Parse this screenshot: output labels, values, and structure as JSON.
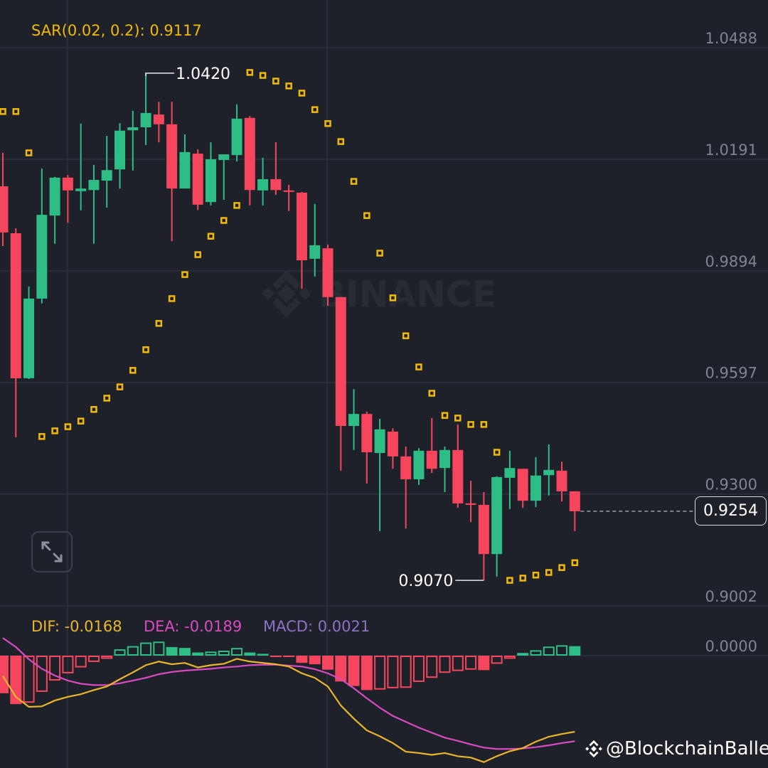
{
  "indicators": {
    "sar_label": "SAR(0.02, 0.2): 0.9117",
    "dif_label": "DIF: -0.0168",
    "dea_label": "DEA: -0.0189",
    "macd_label": "MACD: 0.0021"
  },
  "markers": {
    "high_label": "1.0420",
    "low_label": "0.9070",
    "current_price": "0.9254"
  },
  "watermarks": {
    "center": "BINANCE",
    "credit": "@BlockchainBaller"
  },
  "controls": {
    "expand_icon": "expand-arrows-icon"
  },
  "colors": {
    "background": "#1e2129",
    "up": "#2ebd85",
    "down": "#f6465d",
    "sar": "#f0b90b",
    "dif": "#e9b62c",
    "dea": "#d94bc0",
    "macd": "#8e72c6",
    "axis_text": "#7d8593",
    "grid": "#2b303a"
  },
  "chart_data": [
    {
      "type": "candlestick",
      "ohlc_order": [
        "open",
        "high",
        "low",
        "close"
      ],
      "y_ticks": [
        "1.0488",
        "1.0191",
        "0.9894",
        "0.9597",
        "0.9300",
        "0.9002"
      ],
      "ylim": [
        0.9002,
        1.0488
      ],
      "grid": true,
      "candles": [
        [
          1.0119,
          1.0208,
          0.996,
          0.9996
        ],
        [
          0.9994,
          1.0007,
          0.9451,
          0.9608
        ],
        [
          0.9608,
          0.9852,
          0.9606,
          0.982
        ],
        [
          0.982,
          1.0166,
          0.9807,
          1.0043
        ],
        [
          1.0041,
          1.0144,
          0.9966,
          1.0142
        ],
        [
          1.0142,
          1.0149,
          1.0022,
          1.0108
        ],
        [
          1.0106,
          1.0286,
          1.0055,
          1.0113
        ],
        [
          1.0109,
          1.0176,
          0.9966,
          1.0136
        ],
        [
          1.0134,
          1.0253,
          1.0062,
          1.0162
        ],
        [
          1.0164,
          1.0287,
          1.0113,
          1.0267
        ],
        [
          1.0268,
          1.032,
          1.0161,
          1.0276
        ],
        [
          1.0276,
          1.042,
          1.0229,
          1.0314
        ],
        [
          1.031,
          1.0344,
          1.0236,
          1.0284
        ],
        [
          1.0284,
          1.0344,
          0.9973,
          1.0113
        ],
        [
          1.0113,
          1.0257,
          1.0113,
          1.021
        ],
        [
          1.0206,
          1.0217,
          1.0056,
          1.007
        ],
        [
          1.0077,
          1.0236,
          1.0068,
          1.0191
        ],
        [
          1.0189,
          1.0204,
          1.0083,
          1.0204
        ],
        [
          1.0202,
          1.0337,
          1.0185,
          1.0299
        ],
        [
          1.0301,
          1.0306,
          1.0068,
          1.0109
        ],
        [
          1.0108,
          1.0195,
          1.0068,
          1.0138
        ],
        [
          1.0138,
          1.0236,
          1.0096,
          1.0109
        ],
        [
          1.0108,
          1.0123,
          1.0053,
          1.0104
        ],
        [
          1.0102,
          1.0104,
          0.9846,
          0.9922
        ],
        [
          0.9926,
          1.0072,
          0.9879,
          0.9962
        ],
        [
          0.9954,
          0.9964,
          0.9801,
          0.9824
        ],
        [
          0.9824,
          0.9824,
          0.9362,
          0.9481
        ],
        [
          0.9481,
          0.9579,
          0.9417,
          0.9513
        ],
        [
          0.9513,
          0.9519,
          0.9328,
          0.9411
        ],
        [
          0.9409,
          0.95,
          0.9201,
          0.9472
        ],
        [
          0.9466,
          0.9475,
          0.9367,
          0.94
        ],
        [
          0.94,
          0.9426,
          0.9208,
          0.9339
        ],
        [
          0.9339,
          0.9422,
          0.9324,
          0.9415
        ],
        [
          0.9415,
          0.9502,
          0.9356,
          0.9367
        ],
        [
          0.9369,
          0.9426,
          0.9305,
          0.9417
        ],
        [
          0.9417,
          0.9485,
          0.9263,
          0.9275
        ],
        [
          0.9275,
          0.9335,
          0.9225,
          0.9271
        ],
        [
          0.9271,
          0.9305,
          0.907,
          0.914
        ],
        [
          0.914,
          0.9347,
          0.908,
          0.9345
        ],
        [
          0.9343,
          0.9415,
          0.926,
          0.9369
        ],
        [
          0.9367,
          0.9367,
          0.9263,
          0.9282
        ],
        [
          0.9282,
          0.9398,
          0.9265,
          0.9349
        ],
        [
          0.935,
          0.9432,
          0.9296,
          0.9364
        ],
        [
          0.9362,
          0.9386,
          0.928,
          0.9307
        ],
        [
          0.9307,
          0.9307,
          0.9201,
          0.9254
        ]
      ],
      "sar": [
        1.0318,
        1.0318,
        1.0208,
        0.9453,
        0.9468,
        0.9479,
        0.9494,
        0.9525,
        0.9555,
        0.9585,
        0.9629,
        0.9684,
        0.9754,
        0.982,
        0.9884,
        0.9937,
        0.9986,
        1.0028,
        1.0068,
        1.0422,
        1.0414,
        1.0399,
        1.0386,
        1.0367,
        1.0323,
        1.0286,
        1.0238,
        1.0132,
        1.0041,
        0.9941,
        0.9822,
        0.9721,
        0.9638,
        0.9568,
        0.9509,
        0.9502,
        0.9485,
        0.9485,
        0.9411,
        0.907,
        0.9076,
        0.9084,
        0.9091,
        0.9104,
        0.9117
      ],
      "high_marker": 1.042,
      "low_marker": 0.907,
      "last_price": 0.9254
    },
    {
      "type": "bar",
      "y_ticks": [
        "0.0000"
      ],
      "grid": true,
      "histogram": [
        -0.0083,
        -0.0107,
        -0.0104,
        -0.008,
        -0.0055,
        -0.0039,
        -0.0026,
        -0.0014,
        -0.0007,
        0.0014,
        0.0021,
        0.0029,
        0.0031,
        0.0019,
        0.0017,
        0.0007,
        0.0009,
        0.0011,
        0.0017,
        0.0007,
        0.0004,
        -0.0003,
        -0.0003,
        -0.0016,
        -0.0019,
        -0.0031,
        -0.0057,
        -0.0067,
        -0.0076,
        -0.0075,
        -0.0072,
        -0.0071,
        -0.0058,
        -0.0049,
        -0.0038,
        -0.0034,
        -0.0031,
        -0.0032,
        -0.0018,
        -0.0007,
        0.0006,
        0.0012,
        0.002,
        0.0023,
        0.0021
      ],
      "dif": [
        -0.0045,
        -0.0091,
        -0.0113,
        -0.0112,
        -0.0099,
        -0.0091,
        -0.0085,
        -0.0076,
        -0.0068,
        -0.0052,
        -0.0037,
        -0.0021,
        -0.0013,
        -0.0019,
        -0.0016,
        -0.0026,
        -0.0021,
        -0.0018,
        -0.0007,
        -0.0013,
        -0.0016,
        -0.0019,
        -0.0024,
        -0.0039,
        -0.0049,
        -0.0068,
        -0.011,
        -0.0139,
        -0.0165,
        -0.0178,
        -0.0193,
        -0.0212,
        -0.0215,
        -0.0219,
        -0.0215,
        -0.0222,
        -0.0225,
        -0.0235,
        -0.0222,
        -0.0211,
        -0.0204,
        -0.019,
        -0.0179,
        -0.0173,
        -0.0168
      ],
      "dea": [
        0.0039,
        0.0019,
        -0.0008,
        -0.0029,
        -0.0044,
        -0.0055,
        -0.0062,
        -0.0065,
        -0.0065,
        -0.0061,
        -0.0055,
        -0.0049,
        -0.0041,
        -0.0036,
        -0.0033,
        -0.0031,
        -0.0029,
        -0.0026,
        -0.0024,
        -0.0021,
        -0.002,
        -0.002,
        -0.0022,
        -0.0024,
        -0.003,
        -0.0039,
        -0.0052,
        -0.0072,
        -0.0094,
        -0.0115,
        -0.0133,
        -0.0146,
        -0.0159,
        -0.017,
        -0.0181,
        -0.0188,
        -0.0196,
        -0.0203,
        -0.0206,
        -0.0206,
        -0.0205,
        -0.0202,
        -0.0198,
        -0.0193,
        -0.0189
      ]
    }
  ]
}
